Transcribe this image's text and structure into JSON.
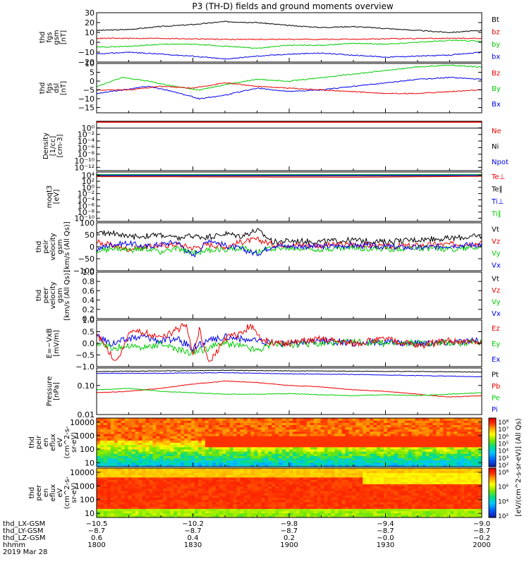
{
  "title": "P3 (TH-D) fields and ground moments overview",
  "colors": {
    "black": "#000000",
    "red": "#ee0000",
    "green": "#00cc00",
    "blue": "#0000ee"
  },
  "chart_data": [
    {
      "id": "fgs_gsm",
      "type": "line",
      "ylabel": [
        "thd",
        "fgs",
        "gsm",
        "[nT]"
      ],
      "ylim": [
        -20,
        30
      ],
      "yticks": [
        "30",
        "20",
        "10",
        "0",
        "−10",
        "−20"
      ],
      "yticks_val": [
        30,
        20,
        10,
        0,
        -10,
        -20
      ],
      "legend": [
        {
          "name": "Bt",
          "color": "black"
        },
        {
          "name": "bz",
          "color": "red"
        },
        {
          "name": "by",
          "color": "green"
        },
        {
          "name": "bx",
          "color": "blue"
        }
      ],
      "series": [
        {
          "color": "black",
          "x": [
            0,
            10,
            20,
            30,
            40,
            50,
            60,
            70,
            80,
            90,
            100,
            110,
            120
          ],
          "values": [
            12,
            13,
            16,
            18,
            21,
            20,
            17,
            15,
            16,
            14,
            12,
            10,
            12
          ]
        },
        {
          "color": "red",
          "x": [
            0,
            20,
            40,
            60,
            80,
            100,
            120
          ],
          "values": [
            4,
            4,
            3,
            3,
            3,
            4,
            4
          ]
        },
        {
          "color": "green",
          "x": [
            0,
            10,
            20,
            30,
            40,
            50,
            60,
            70,
            80,
            90,
            100,
            110,
            120
          ],
          "values": [
            -5,
            -4,
            -2,
            -2,
            -4,
            -6,
            -3,
            -3,
            -1,
            -2,
            0,
            2,
            1
          ]
        },
        {
          "color": "blue",
          "x": [
            0,
            10,
            20,
            30,
            40,
            50,
            60,
            70,
            80,
            90,
            100,
            110,
            120
          ],
          "values": [
            -12,
            -10,
            -12,
            -14,
            -17,
            -14,
            -12,
            -11,
            -13,
            -15,
            -14,
            -13,
            -10
          ]
        }
      ]
    },
    {
      "id": "fgs_dsl",
      "type": "line",
      "ylabel": [
        "thd",
        "fgs",
        "dsl",
        "[nT]"
      ],
      "ylim": [
        -18,
        10
      ],
      "yticks": [
        "10",
        "5",
        "0",
        "−5",
        "−10",
        "−15"
      ],
      "yticks_val": [
        10,
        5,
        0,
        -5,
        -10,
        -15
      ],
      "legend": [
        {
          "name": "Bz",
          "color": "red"
        },
        {
          "name": "By",
          "color": "green"
        },
        {
          "name": "Bx",
          "color": "blue"
        }
      ],
      "series": [
        {
          "color": "green",
          "x": [
            0,
            8,
            16,
            24,
            32,
            40,
            50,
            60,
            70,
            80,
            90,
            100,
            110,
            120
          ],
          "values": [
            -3,
            2,
            0,
            -3,
            -5,
            -2,
            1,
            0,
            2,
            4,
            6,
            8,
            9,
            8
          ]
        },
        {
          "color": "blue",
          "x": [
            0,
            8,
            16,
            24,
            32,
            40,
            50,
            60,
            70,
            80,
            90,
            100,
            110,
            120
          ],
          "values": [
            -7,
            -5,
            -3,
            -6,
            -10,
            -8,
            -4,
            -6,
            -5,
            -3,
            -1,
            1,
            2,
            1
          ]
        },
        {
          "color": "red",
          "x": [
            0,
            10,
            20,
            30,
            40,
            50,
            60,
            70,
            80,
            90,
            100,
            110,
            120
          ],
          "values": [
            -5,
            -5,
            -3,
            -4,
            -1,
            -3,
            -4,
            -5,
            -6,
            -7,
            -7,
            -6,
            -5
          ]
        }
      ]
    },
    {
      "id": "density",
      "type": "line",
      "ylabel": [
        "Density",
        "[1/cc]",
        "[cm-3]"
      ],
      "ylim": [
        -13,
        2
      ],
      "log": true,
      "yticks": [
        "10⁰",
        "10⁻²",
        "10⁻⁴",
        "10⁻⁶",
        "10⁻⁸",
        "10⁻¹⁰",
        "10⁻¹²"
      ],
      "yticks_val": [
        0,
        -2,
        -4,
        -6,
        -8,
        -10,
        -12
      ],
      "legend": [
        {
          "name": "Ne",
          "color": "red"
        },
        {
          "name": "Ni",
          "color": "black"
        },
        {
          "name": "Npot",
          "color": "blue"
        }
      ],
      "series": [
        {
          "color": "black",
          "x": [
            0,
            120
          ],
          "values": [
            -0.1,
            -0.1
          ]
        }
      ]
    },
    {
      "id": "moqt3",
      "type": "line",
      "ylabel": [
        "moqt3",
        "[eV]"
      ],
      "ylim": [
        -11,
        5
      ],
      "log": true,
      "yticks": [
        "10⁴",
        "10²",
        "10⁰",
        "10⁻²",
        "10⁻⁴",
        "10⁻⁶",
        "10⁻⁸",
        "10⁻¹⁰"
      ],
      "yticks_val": [
        4,
        2,
        0,
        -2,
        -4,
        -6,
        -8,
        -10
      ],
      "legend": [
        {
          "name": "Te⊥",
          "color": "red"
        },
        {
          "name": "Te∥",
          "color": "black"
        },
        {
          "name": "Ti⊥",
          "color": "blue"
        },
        {
          "name": "Ti∥",
          "color": "green"
        }
      ],
      "series": [
        {
          "color": "green",
          "x": [
            0,
            120
          ],
          "values": [
            4.2,
            4.2
          ]
        },
        {
          "color": "blue",
          "x": [
            0,
            120
          ],
          "values": [
            4.0,
            4.0
          ]
        },
        {
          "color": "black",
          "x": [
            0,
            120
          ],
          "values": [
            3.7,
            3.7
          ]
        },
        {
          "color": "red",
          "x": [
            0,
            40,
            80,
            120
          ],
          "values": [
            3.5,
            3.4,
            3.3,
            3.6
          ]
        }
      ]
    },
    {
      "id": "peir_vel",
      "type": "line",
      "ylabel": [
        "thd",
        "peir",
        "velocity",
        "gsm",
        "[km/s (All Qs)]"
      ],
      "ylim": [
        -100,
        100
      ],
      "yticks": [
        "100",
        "50",
        "0",
        "−50",
        "−100"
      ],
      "yticks_val": [
        100,
        50,
        0,
        -50,
        -100
      ],
      "legend": [
        {
          "name": "Vt",
          "color": "black"
        },
        {
          "name": "Vz",
          "color": "red"
        },
        {
          "name": "Vy",
          "color": "green"
        },
        {
          "name": "Vx",
          "color": "blue"
        }
      ],
      "series": [
        {
          "color": "black",
          "x": [
            0,
            5,
            10,
            15,
            20,
            25,
            30,
            35,
            40,
            45,
            50,
            55,
            60,
            70,
            80,
            90,
            100,
            110,
            120
          ],
          "values": [
            55,
            60,
            40,
            45,
            50,
            35,
            45,
            40,
            55,
            45,
            70,
            20,
            25,
            22,
            28,
            20,
            30,
            35,
            45
          ]
        },
        {
          "color": "red",
          "x": [
            0,
            5,
            10,
            15,
            20,
            25,
            30,
            35,
            40,
            45,
            50,
            55,
            60,
            70,
            80,
            90,
            100,
            110,
            120
          ],
          "values": [
            20,
            5,
            -10,
            0,
            5,
            10,
            -5,
            10,
            0,
            20,
            30,
            10,
            8,
            5,
            10,
            0,
            5,
            10,
            15
          ]
        },
        {
          "color": "green",
          "x": [
            0,
            5,
            10,
            15,
            20,
            25,
            30,
            35,
            40,
            45,
            50,
            55,
            60,
            70,
            80,
            90,
            100,
            110,
            120
          ],
          "values": [
            -20,
            -5,
            -15,
            -10,
            -20,
            -10,
            -25,
            -15,
            -10,
            -5,
            -20,
            -5,
            -8,
            -10,
            -5,
            -10,
            -5,
            -10,
            0
          ]
        },
        {
          "color": "blue",
          "x": [
            0,
            5,
            10,
            15,
            20,
            25,
            30,
            35,
            40,
            45,
            50,
            55,
            60,
            70,
            80,
            90,
            100,
            110,
            120
          ],
          "values": [
            -10,
            10,
            15,
            0,
            10,
            20,
            -40,
            30,
            5,
            -10,
            -30,
            5,
            2,
            0,
            5,
            0,
            -5,
            5,
            10
          ]
        }
      ]
    },
    {
      "id": "peer_vel",
      "type": "line",
      "ylabel": [
        "thd",
        "peer",
        "velocity",
        "gsm",
        "[km/s (All Qs)]"
      ],
      "ylim": [
        0,
        1
      ],
      "yticks": [
        "1.0",
        "0.8",
        "0.6",
        "0.4",
        "0.2",
        "0.0"
      ],
      "yticks_val": [
        1,
        0.8,
        0.6,
        0.4,
        0.2,
        0
      ],
      "legend": [
        {
          "name": "Vt",
          "color": "black"
        },
        {
          "name": "Vz",
          "color": "red"
        },
        {
          "name": "Vy",
          "color": "green"
        },
        {
          "name": "Vx",
          "color": "blue"
        }
      ],
      "series": []
    },
    {
      "id": "efield",
      "type": "line",
      "ylabel": [
        "E=−VxB",
        "[mV/m]"
      ],
      "ylim": [
        -1,
        1
      ],
      "yticks": [
        "1.0",
        "0.5",
        "0.0",
        "−0.5",
        "−1.0"
      ],
      "yticks_val": [
        1,
        0.5,
        0,
        -0.5,
        -1
      ],
      "legend": [
        {
          "name": "Ez",
          "color": "red"
        },
        {
          "name": "Ey",
          "color": "green"
        },
        {
          "name": "Ex",
          "color": "blue"
        }
      ],
      "series": [
        {
          "color": "blue",
          "x": [
            0,
            5,
            10,
            15,
            20,
            25,
            30,
            35,
            40,
            45,
            50,
            55,
            60,
            70,
            80,
            90,
            100,
            110,
            120
          ],
          "values": [
            0.3,
            0.0,
            0.2,
            0.3,
            0.1,
            0.2,
            -0.2,
            0.1,
            0.3,
            0.2,
            0.1,
            0.0,
            0.0,
            0.1,
            0.0,
            0.05,
            0.0,
            0.05,
            0.1
          ]
        },
        {
          "color": "green",
          "x": [
            0,
            5,
            10,
            15,
            20,
            25,
            30,
            35,
            40,
            45,
            50,
            55,
            60,
            70,
            80,
            90,
            100,
            110,
            120
          ],
          "values": [
            0.0,
            -0.2,
            -0.1,
            -0.2,
            0.0,
            -0.3,
            -0.4,
            -0.2,
            0.0,
            -0.1,
            -0.3,
            0.0,
            -0.05,
            0.0,
            0.05,
            0.0,
            0.0,
            0.05,
            0.0
          ]
        },
        {
          "color": "red",
          "x": [
            0,
            3,
            6,
            10,
            15,
            20,
            25,
            28,
            30,
            32,
            35,
            40,
            45,
            48,
            50,
            55,
            60,
            70,
            80,
            90,
            100,
            110,
            120
          ],
          "values": [
            0.4,
            -0.2,
            -0.8,
            0.4,
            0.5,
            0.2,
            0.6,
            0.8,
            -0.5,
            0.6,
            -0.9,
            0.2,
            0.4,
            0.8,
            0.3,
            0.0,
            0.0,
            0.2,
            0.0,
            0.2,
            -0.1,
            0.1,
            0.0
          ]
        }
      ]
    },
    {
      "id": "pressure",
      "type": "line",
      "ylabel": [
        "Pressure",
        "[nPa]"
      ],
      "ylim": [
        -2,
        -0.4
      ],
      "log": true,
      "yticks": [
        "0.10",
        "0.01"
      ],
      "yticks_val": [
        -1,
        -2
      ],
      "legend": [
        {
          "name": "Pt",
          "color": "black"
        },
        {
          "name": "Pb",
          "color": "red"
        },
        {
          "name": "Pe",
          "color": "green"
        },
        {
          "name": "Pi",
          "color": "blue"
        }
      ],
      "series": [
        {
          "color": "black",
          "x": [
            0,
            20,
            40,
            60,
            80,
            100,
            120
          ],
          "values": [
            -0.52,
            -0.5,
            -0.48,
            -0.5,
            -0.51,
            -0.52,
            -0.54
          ]
        },
        {
          "color": "blue",
          "x": [
            0,
            20,
            40,
            60,
            80,
            100,
            120
          ],
          "values": [
            -0.58,
            -0.58,
            -0.56,
            -0.6,
            -0.62,
            -0.66,
            -0.7
          ]
        },
        {
          "color": "red",
          "x": [
            0,
            10,
            20,
            30,
            40,
            50,
            60,
            70,
            80,
            90,
            100,
            110,
            120
          ],
          "values": [
            -1.25,
            -1.2,
            -1.1,
            -0.95,
            -0.85,
            -0.9,
            -1.0,
            -1.05,
            -1.15,
            -1.2,
            -1.3,
            -1.4,
            -1.35
          ]
        },
        {
          "color": "green",
          "x": [
            0,
            10,
            20,
            30,
            40,
            50,
            60,
            70,
            80,
            90,
            100,
            110,
            120
          ],
          "values": [
            -1.15,
            -1.1,
            -1.2,
            -1.25,
            -1.3,
            -1.3,
            -1.28,
            -1.32,
            -1.35,
            -1.32,
            -1.35,
            -1.3,
            -1.25
          ]
        }
      ]
    },
    {
      "id": "peir_spec",
      "type": "heatmap",
      "ylabel": [
        "thd",
        "peir",
        "en",
        "eflux",
        "eV",
        "(cm^2-s-",
        "sr-eV)"
      ],
      "ylim": [
        0.7,
        4.3
      ],
      "log": true,
      "yticks": [
        "10000",
        "1000",
        "100",
        "10"
      ],
      "yticks_val": [
        4,
        3,
        2,
        1
      ]
    },
    {
      "id": "peer_spec",
      "type": "heatmap",
      "ylabel": [
        "thd",
        "peer",
        "en",
        "eflux",
        "eV",
        "(cm^2-s-",
        "sr-eV)"
      ],
      "ylim": [
        0.7,
        4.3
      ],
      "log": true,
      "yticks": [
        "10000",
        "1000",
        "100",
        "10"
      ],
      "yticks_val": [
        4,
        3,
        2,
        1
      ]
    }
  ],
  "colorbar": {
    "ticks1": [
      "10⁸",
      "10⁷",
      "10⁶",
      "10⁵",
      "10⁴",
      "10³",
      "10²"
    ],
    "ticks2": [
      "10⁸",
      "10⁶",
      "10⁴",
      "10²"
    ],
    "label": "[eV/(cm^2-s-sr-eV)] (All Qs)"
  },
  "xaxis": {
    "rows": [
      {
        "label": "thd_LX-GSM",
        "values": [
          "−10.5",
          "−10.2",
          "−9.8",
          "−9.4",
          "−9.0"
        ]
      },
      {
        "label": "thd_LY-GSM",
        "values": [
          "−8.7",
          "−8.7",
          "−8.7",
          "−8.7",
          "−8.7"
        ]
      },
      {
        "label": "thd_LZ-GSM",
        "values": [
          "0.6",
          "0.4",
          "0.2",
          "−0.0",
          "−0.2"
        ]
      },
      {
        "label": "hhmm",
        "values": [
          "1800",
          "1830",
          "1900",
          "1930",
          "2000"
        ]
      }
    ],
    "date": "2019 Mar 28",
    "major_minutes": [
      0,
      30,
      60,
      90,
      120
    ]
  }
}
